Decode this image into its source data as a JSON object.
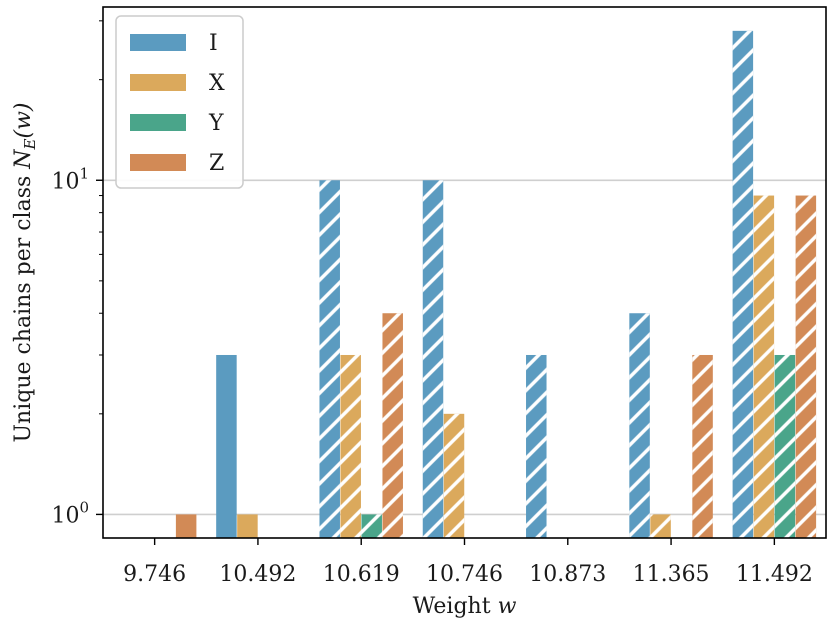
{
  "chart_data": {
    "type": "bar",
    "xlabel": "Weight w",
    "ylabel": "Unique chains per class N_E(w)",
    "yscale": "log",
    "ylim": [
      0.85,
      33
    ],
    "grid": "y-major",
    "legend": "top-left",
    "categories": [
      "9.746",
      "10.492",
      "10.619",
      "10.746",
      "10.873",
      "11.365",
      "11.492"
    ],
    "hatched_categories": [
      false,
      false,
      true,
      true,
      true,
      true,
      true
    ],
    "y_ticks": [
      {
        "value": 1,
        "base": "10",
        "exp": "0"
      },
      {
        "value": 10,
        "base": "10",
        "exp": "1"
      }
    ],
    "series": [
      {
        "name": "I",
        "color": "#5b9bc0",
        "values": [
          null,
          3,
          10,
          10,
          3,
          4,
          28
        ]
      },
      {
        "name": "X",
        "color": "#dba95c",
        "values": [
          null,
          1,
          3,
          2,
          null,
          1,
          9
        ]
      },
      {
        "name": "Y",
        "color": "#4aa58a",
        "values": [
          null,
          null,
          1,
          null,
          null,
          null,
          3
        ]
      },
      {
        "name": "Z",
        "color": "#d28a56",
        "values": [
          1,
          null,
          4,
          null,
          null,
          3,
          9
        ]
      }
    ]
  }
}
